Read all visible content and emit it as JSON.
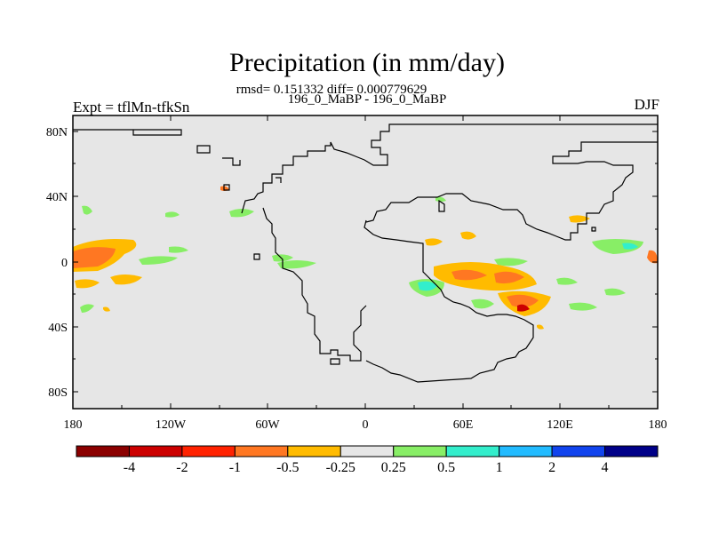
{
  "title": "Precipitation (in mm/day)",
  "stats": "rmsd= 0.151332 diff= 0.000779629",
  "case_label": "196_0_MaBP - 196_0_MaBP",
  "experiment": "Expt = tflMn-tfkSn",
  "season": "DJF",
  "axes": {
    "lat_ticks": [
      "80N",
      "40N",
      "0",
      "40S",
      "80S"
    ],
    "lon_ticks": [
      "180",
      "120W",
      "60W",
      "0",
      "60E",
      "120E",
      "180"
    ]
  },
  "colorbar": {
    "colors": [
      "#8b0000",
      "#cc0000",
      "#ff2200",
      "#ff7722",
      "#ffbb00",
      "#e6e6e6",
      "#88ee66",
      "#33eecc",
      "#22bbff",
      "#1144ee",
      "#000088"
    ],
    "labels": [
      "-4",
      "-2",
      "-1",
      "-0.5",
      "-0.25",
      "0.25",
      "0.5",
      "1",
      "2",
      "4"
    ]
  },
  "colors": {
    "land_ocean": "#e6e6e6",
    "outline": "#000000"
  }
}
